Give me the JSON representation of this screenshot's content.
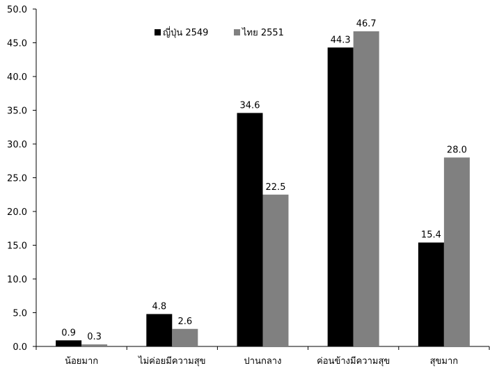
{
  "chart_data": {
    "type": "bar",
    "title": "",
    "xlabel": "",
    "ylabel": "",
    "categories": [
      "น้อยมาก",
      "ไม่ค่อยมีความสุข",
      "ปานกลาง",
      "ค่อนข้างมีความสุข",
      "สุขมาก"
    ],
    "series": [
      {
        "name": "ญี่ปุ่น 2549",
        "color": "#000000",
        "values": [
          0.9,
          4.8,
          34.6,
          44.3,
          15.4
        ]
      },
      {
        "name": "ไทย 2551",
        "color": "#808080",
        "values": [
          0.3,
          2.6,
          22.5,
          46.7,
          28.0
        ]
      }
    ],
    "ylim": [
      0,
      50
    ],
    "yticks": [
      "0.0",
      "5.0",
      "10.0",
      "15.0",
      "20.0",
      "25.0",
      "30.0",
      "35.0",
      "40.0",
      "45.0",
      "50.0"
    ],
    "data_labels": [
      [
        "0.9",
        "4.8",
        "34.6",
        "44.3",
        "15.4"
      ],
      [
        "0.3",
        "2.6",
        "22.5",
        "46.7",
        "28.0"
      ]
    ],
    "grid": false,
    "legend_position": "top-center"
  }
}
